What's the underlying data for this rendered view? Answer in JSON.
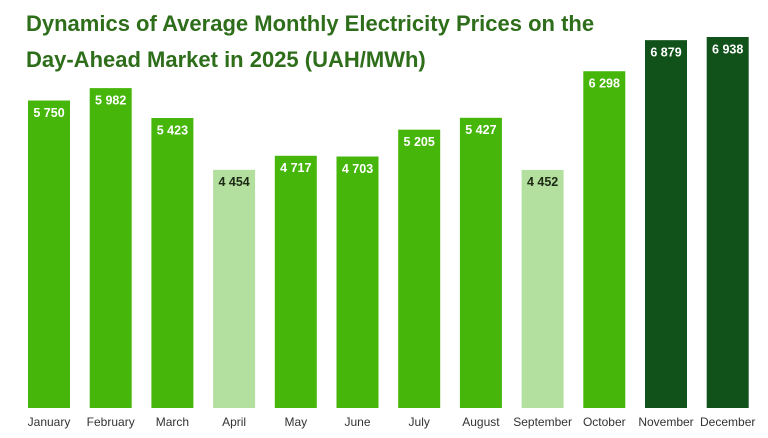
{
  "chart_data": {
    "type": "bar",
    "title": "Dynamics of Average Monthly Electricity Prices on the Day-Ahead Market in 2025 (UAH/MWh)",
    "categories": [
      "January",
      "February",
      "March",
      "April",
      "May",
      "June",
      "July",
      "August",
      "September",
      "October",
      "November",
      "December"
    ],
    "values": [
      5750,
      5982,
      5423,
      4454,
      4717,
      4703,
      5205,
      5427,
      4452,
      6298,
      6879,
      6938
    ],
    "value_labels": [
      "5 750",
      "5 982",
      "5 423",
      "4 454",
      "4 717",
      "4 703",
      "5 205",
      "5 427",
      "4 452",
      "6 298",
      "6 879",
      "6 938"
    ],
    "colors": [
      "#46b60a",
      "#46b60a",
      "#46b60a",
      "#b3df9f",
      "#46b60a",
      "#46b60a",
      "#46b60a",
      "#46b60a",
      "#b3df9f",
      "#46b60a",
      "#11521a",
      "#11521a"
    ]
  }
}
